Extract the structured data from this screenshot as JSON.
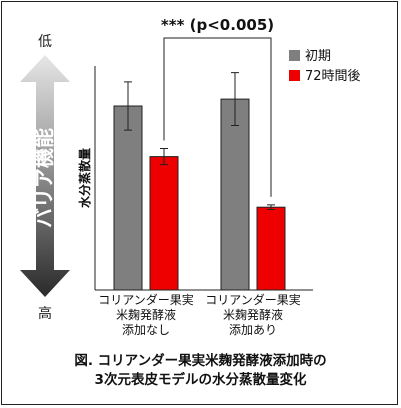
{
  "chart_data": {
    "type": "bar",
    "categories": [
      [
        "コリアンダー果実",
        "米麹発酵液",
        "添加なし"
      ],
      [
        "コリアンダー果実",
        "米麹発酵液",
        "添加あり"
      ]
    ],
    "series": [
      {
        "name": "初期",
        "color": "#7f7f7f",
        "values": [
          0.8,
          0.83
        ],
        "errors": [
          0.105,
          0.115
        ]
      },
      {
        "name": "72時間後",
        "color": "#ee0000",
        "values": [
          0.58,
          0.36
        ],
        "errors": [
          0.035,
          0.01
        ]
      }
    ],
    "ylabel": "水分蒸散量",
    "ylim": [
      0,
      1
    ],
    "grid": false,
    "legend": "top-right",
    "significance": "*** (p<0.005)",
    "barrier_axis": {
      "label": "バリア機能",
      "top_label": "低",
      "bottom_label": "高"
    }
  },
  "caption": {
    "line1": "図. コリアンダー果実米麹発酵液添加時の",
    "line2": "3次元表皮モデルの水分蒸散量変化"
  }
}
